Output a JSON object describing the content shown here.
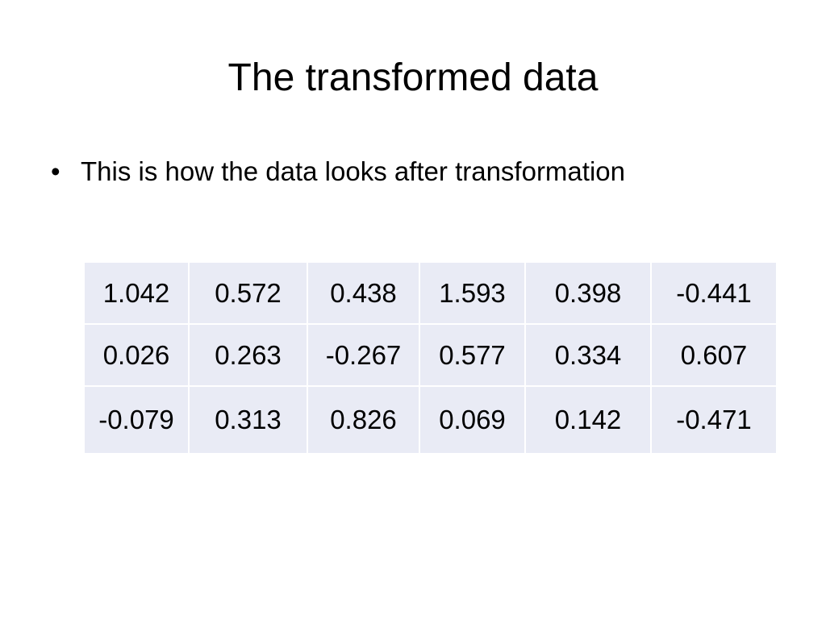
{
  "header": {
    "title": "The transformed data"
  },
  "bullets": [
    "This is how the data looks after transformation"
  ],
  "table": {
    "rows": [
      [
        "1.042",
        "0.572",
        "0.438",
        "1.593",
        "0.398",
        "-0.441"
      ],
      [
        "0.026",
        "0.263",
        "-0.267",
        "0.577",
        "0.334",
        "0.607"
      ],
      [
        "-0.079",
        "0.313",
        "0.826",
        "0.069",
        "0.142",
        "-0.471"
      ]
    ]
  }
}
